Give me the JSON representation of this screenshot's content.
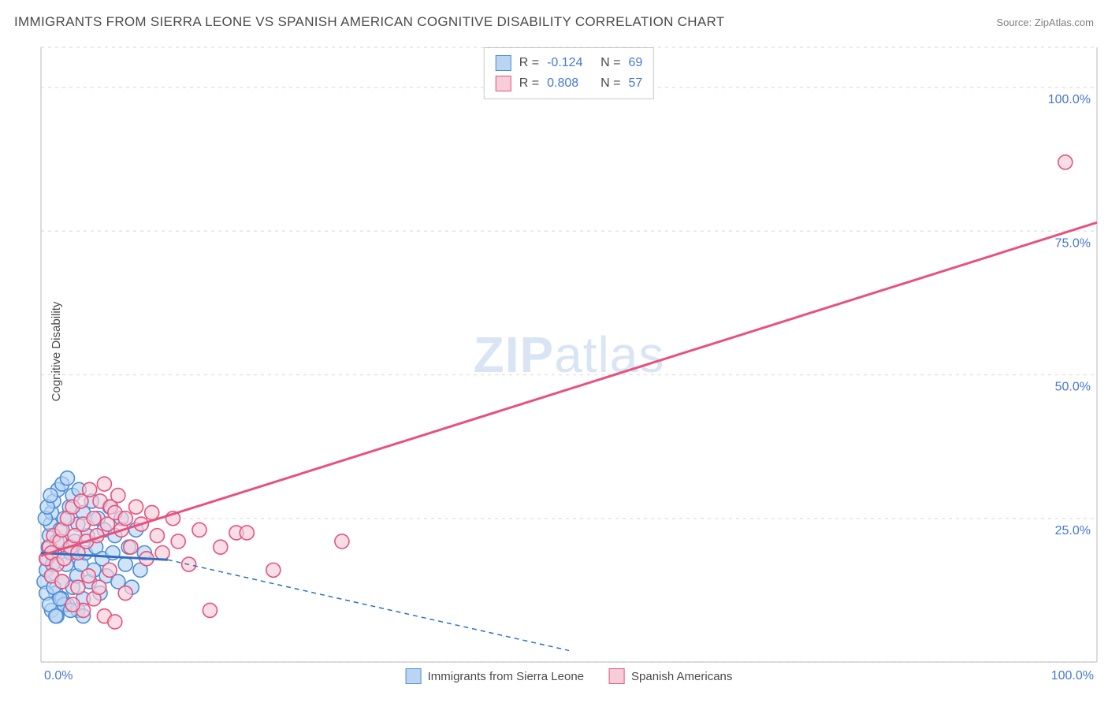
{
  "header": {
    "title": "IMMIGRANTS FROM SIERRA LEONE VS SPANISH AMERICAN COGNITIVE DISABILITY CORRELATION CHART",
    "source_label": "Source:",
    "source_value": "ZipAtlas.com"
  },
  "watermark": {
    "prefix": "ZIP",
    "suffix": "atlas"
  },
  "chart": {
    "type": "scatter",
    "y_axis_label": "Cognitive Disability",
    "xlim": [
      0,
      100
    ],
    "ylim": [
      0,
      107
    ],
    "x_ticks": [
      {
        "value": 0,
        "label": "0.0%"
      },
      {
        "value": 100,
        "label": "100.0%"
      }
    ],
    "y_ticks": [
      {
        "value": 25,
        "label": "25.0%"
      },
      {
        "value": 50,
        "label": "50.0%"
      },
      {
        "value": 75,
        "label": "75.0%"
      },
      {
        "value": 100,
        "label": "100.0%"
      }
    ],
    "gridlines_y": [
      0,
      25,
      50,
      75,
      100,
      107
    ],
    "background_color": "#ffffff",
    "grid_color": "#e3e3e3",
    "axis_color": "#d0d0d0",
    "tick_label_color": "#4878d0",
    "marker_radius": 9,
    "marker_stroke_width": 1.6,
    "series": [
      {
        "id": "sierra_leone",
        "name": "Immigrants from Sierra Leone",
        "fill": "#b9d5f2",
        "stroke": "#4e8dd6",
        "line_color": "#2e6fc4",
        "R": "-0.124",
        "N": "69",
        "trend": {
          "x1": 0,
          "y1": 19.0,
          "x2_solid": 12,
          "y2_solid": 17.8,
          "x2_dash": 50,
          "y2_dash": 2.0,
          "dash": "6,5"
        },
        "points": [
          [
            0.3,
            14
          ],
          [
            0.5,
            16
          ],
          [
            0.6,
            18
          ],
          [
            0.7,
            20
          ],
          [
            0.8,
            22
          ],
          [
            0.9,
            24
          ],
          [
            1.0,
            15
          ],
          [
            1.0,
            26
          ],
          [
            1.1,
            17
          ],
          [
            1.2,
            28
          ],
          [
            1.3,
            19
          ],
          [
            1.4,
            12
          ],
          [
            1.5,
            21
          ],
          [
            1.6,
            30
          ],
          [
            1.8,
            23
          ],
          [
            2.0,
            14
          ],
          [
            2.0,
            31
          ],
          [
            2.2,
            25
          ],
          [
            2.4,
            17
          ],
          [
            2.5,
            10
          ],
          [
            2.5,
            32
          ],
          [
            2.7,
            27
          ],
          [
            2.8,
            19
          ],
          [
            3.0,
            13
          ],
          [
            3.0,
            29
          ],
          [
            3.2,
            21
          ],
          [
            3.4,
            15
          ],
          [
            3.5,
            24
          ],
          [
            3.6,
            30
          ],
          [
            3.8,
            17
          ],
          [
            4.0,
            11
          ],
          [
            4.0,
            26
          ],
          [
            4.2,
            19
          ],
          [
            4.4,
            22
          ],
          [
            4.6,
            14
          ],
          [
            4.8,
            28
          ],
          [
            5.0,
            16
          ],
          [
            5.2,
            20
          ],
          [
            5.4,
            25
          ],
          [
            5.6,
            12
          ],
          [
            5.8,
            18
          ],
          [
            6.0,
            23
          ],
          [
            6.2,
            15
          ],
          [
            6.5,
            27
          ],
          [
            6.8,
            19
          ],
          [
            7.0,
            22
          ],
          [
            7.3,
            14
          ],
          [
            7.6,
            25
          ],
          [
            8.0,
            17
          ],
          [
            8.3,
            20
          ],
          [
            8.6,
            13
          ],
          [
            9.0,
            23
          ],
          [
            9.4,
            16
          ],
          [
            9.8,
            19
          ],
          [
            1.0,
            9
          ],
          [
            1.5,
            8
          ],
          [
            2.0,
            11
          ],
          [
            0.5,
            12
          ],
          [
            0.8,
            10
          ],
          [
            1.2,
            13
          ],
          [
            0.4,
            25
          ],
          [
            0.6,
            27
          ],
          [
            0.9,
            29
          ],
          [
            3.5,
            9
          ],
          [
            4.0,
            8
          ],
          [
            2.2,
            10
          ],
          [
            2.8,
            9
          ],
          [
            1.8,
            11
          ],
          [
            1.4,
            8
          ]
        ]
      },
      {
        "id": "spanish_american",
        "name": "Spanish Americans",
        "fill": "#f6cdd9",
        "stroke": "#e6527e",
        "line_color": "#e6527e",
        "R": "0.808",
        "N": "57",
        "trend": {
          "x1": 0,
          "y1": 18.5,
          "x2_solid": 100,
          "y2_solid": 76.5
        },
        "points": [
          [
            0.5,
            18
          ],
          [
            0.8,
            20
          ],
          [
            1.0,
            19
          ],
          [
            1.2,
            22
          ],
          [
            1.5,
            17
          ],
          [
            1.8,
            21
          ],
          [
            2.0,
            23
          ],
          [
            2.2,
            18
          ],
          [
            2.5,
            25
          ],
          [
            2.8,
            20
          ],
          [
            3.0,
            27
          ],
          [
            3.2,
            22
          ],
          [
            3.5,
            19
          ],
          [
            3.8,
            28
          ],
          [
            4.0,
            24
          ],
          [
            4.3,
            21
          ],
          [
            4.6,
            30
          ],
          [
            5.0,
            25
          ],
          [
            5.3,
            22
          ],
          [
            5.6,
            28
          ],
          [
            6.0,
            31
          ],
          [
            6.3,
            24
          ],
          [
            6.6,
            27
          ],
          [
            7.0,
            26
          ],
          [
            7.3,
            29
          ],
          [
            7.6,
            23
          ],
          [
            8.0,
            25
          ],
          [
            8.5,
            20
          ],
          [
            9.0,
            27
          ],
          [
            9.5,
            24
          ],
          [
            10.0,
            18
          ],
          [
            10.5,
            26
          ],
          [
            11.0,
            22
          ],
          [
            11.5,
            19
          ],
          [
            12.5,
            25
          ],
          [
            13.0,
            21
          ],
          [
            14.0,
            17
          ],
          [
            15.0,
            23
          ],
          [
            16.0,
            9
          ],
          [
            17.0,
            20
          ],
          [
            4.0,
            9
          ],
          [
            5.0,
            11
          ],
          [
            6.0,
            8
          ],
          [
            7.0,
            7
          ],
          [
            3.0,
            10
          ],
          [
            8.0,
            12
          ],
          [
            18.5,
            22.5
          ],
          [
            19.5,
            22.5
          ],
          [
            22.0,
            16
          ],
          [
            28.5,
            21
          ],
          [
            97.0,
            87
          ],
          [
            1.0,
            15
          ],
          [
            2.0,
            14
          ],
          [
            3.5,
            13
          ],
          [
            4.5,
            15
          ],
          [
            5.5,
            13
          ],
          [
            6.5,
            16
          ]
        ]
      }
    ]
  },
  "top_legend": {
    "rows": [
      {
        "swatch_fill": "#b9d5f2",
        "swatch_stroke": "#4e8dd6",
        "r_label": "R =",
        "r_value": "-0.124",
        "n_label": "N =",
        "n_value": "69"
      },
      {
        "swatch_fill": "#f6cdd9",
        "swatch_stroke": "#e6527e",
        "r_label": "R =",
        "r_value": "0.808",
        "n_label": "N =",
        "n_value": "57"
      }
    ]
  },
  "bottom_legend": {
    "items": [
      {
        "swatch_fill": "#b9d5f2",
        "swatch_stroke": "#4e8dd6",
        "label": "Immigrants from Sierra Leone"
      },
      {
        "swatch_fill": "#f6cdd9",
        "swatch_stroke": "#e6527e",
        "label": "Spanish Americans"
      }
    ]
  }
}
